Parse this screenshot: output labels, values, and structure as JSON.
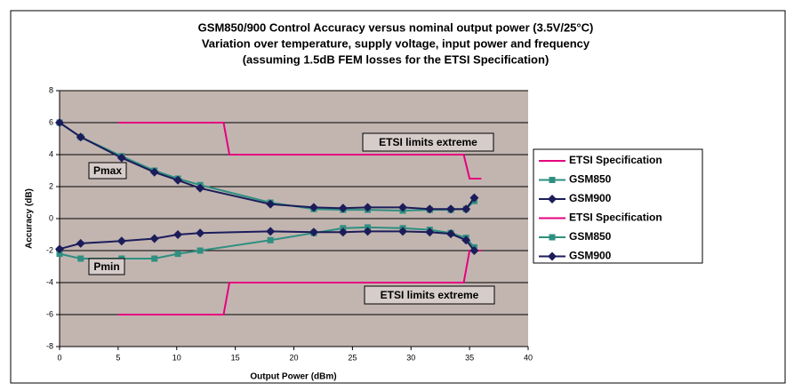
{
  "chart_data": {
    "type": "line",
    "title": [
      "GSM850/900 Control Accuracy versus nominal output power (3.5V/25°C)",
      "Variation over temperature, supply voltage, input power and frequency",
      "(assuming 1.5dB FEM losses for the ETSI Specification)"
    ],
    "xlabel": "Output Power (dBm)",
    "ylabel": "Accuracy (dB)",
    "xlim": [
      0,
      40
    ],
    "xticks": [
      0,
      5,
      10,
      15,
      20,
      25,
      30,
      35,
      40
    ],
    "ylim": [
      -8,
      8
    ],
    "yticks": [
      -8,
      -6,
      -4,
      -2,
      0,
      2,
      4,
      6,
      8
    ],
    "grid": true,
    "legend": "right",
    "annotations": [
      "ETSI limits extreme",
      "Pmax",
      "Pmin",
      "ETSI limits extreme"
    ],
    "series": [
      {
        "name": "ETSI Specification",
        "color": "#e6007e",
        "marker": "none",
        "x": [
          5,
          14,
          14.5,
          34.5,
          35,
          36
        ],
        "values": [
          6,
          6,
          4,
          4,
          2.5,
          2.5
        ]
      },
      {
        "name": "GSM850",
        "color": "#2f8f80",
        "marker": "square",
        "x": [
          0,
          1.8,
          5.3,
          8.1,
          10.1,
          12,
          18,
          21.7,
          24.2,
          26.3,
          29.3,
          31.6,
          33.4,
          34.7,
          35.4
        ],
        "values": [
          6,
          5.1,
          3.9,
          3.0,
          2.5,
          2.1,
          1.0,
          0.6,
          0.55,
          0.55,
          0.5,
          0.55,
          0.55,
          0.6,
          1.1
        ]
      },
      {
        "name": "GSM900",
        "color": "#1c1c5a",
        "marker": "diamond",
        "x": [
          0,
          1.8,
          5.3,
          8.1,
          10.1,
          12,
          18,
          21.7,
          24.2,
          26.3,
          29.3,
          31.6,
          33.4,
          34.7,
          35.4
        ],
        "values": [
          6,
          5.1,
          3.8,
          2.9,
          2.4,
          1.9,
          0.9,
          0.7,
          0.65,
          0.7,
          0.7,
          0.6,
          0.6,
          0.6,
          1.3
        ]
      },
      {
        "name": "ETSI Specification",
        "color": "#e6007e",
        "marker": "none",
        "x": [
          5,
          14,
          14.5,
          34.5,
          35,
          36
        ],
        "values": [
          -6,
          -6,
          -4,
          -4,
          -2,
          -2
        ]
      },
      {
        "name": "GSM850",
        "color": "#2f8f80",
        "marker": "square",
        "x": [
          0,
          1.8,
          5.3,
          8.1,
          10.1,
          12,
          18,
          21.7,
          24.2,
          26.3,
          29.3,
          31.6,
          33.4,
          34.7,
          35.4
        ],
        "values": [
          -2.2,
          -2.5,
          -2.5,
          -2.5,
          -2.2,
          -2.0,
          -1.35,
          -0.9,
          -0.6,
          -0.55,
          -0.6,
          -0.7,
          -0.9,
          -1.2,
          -1.8
        ]
      },
      {
        "name": "GSM900",
        "color": "#1c1c5a",
        "marker": "diamond",
        "x": [
          0,
          1.8,
          5.3,
          8.1,
          10.1,
          12,
          18,
          21.7,
          24.2,
          26.3,
          29.3,
          31.6,
          33.4,
          34.7,
          35.4
        ],
        "values": [
          -1.9,
          -1.55,
          -1.4,
          -1.25,
          -1.0,
          -0.9,
          -0.8,
          -0.85,
          -0.85,
          -0.8,
          -0.8,
          -0.85,
          -0.95,
          -1.35,
          -2.0
        ]
      }
    ]
  }
}
